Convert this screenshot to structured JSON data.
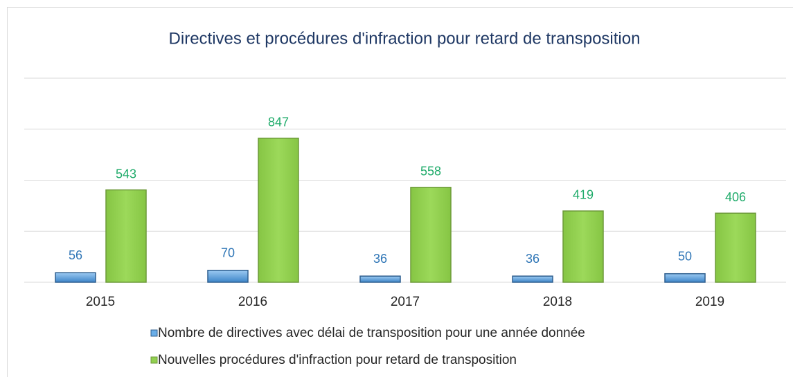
{
  "chart_data": {
    "type": "bar",
    "title": "Directives et procédures d'infraction pour retard de transposition",
    "categories": [
      "2015",
      "2016",
      "2017",
      "2018",
      "2019"
    ],
    "series": [
      {
        "name": "Nombre de directives avec délai de transposition pour une année donnée",
        "color": "#6aaee8",
        "label_color": "#2e75b6",
        "values": [
          56,
          70,
          36,
          36,
          50
        ]
      },
      {
        "name": "Nouvelles procédures d'infraction pour retard de transposition",
        "color": "#92d050",
        "label_color": "#1fab6a",
        "values": [
          543,
          847,
          558,
          419,
          406
        ]
      }
    ],
    "ylim": [
      0,
      1200
    ],
    "yticks": [
      0,
      300,
      600,
      900,
      1200
    ],
    "grid": true
  }
}
